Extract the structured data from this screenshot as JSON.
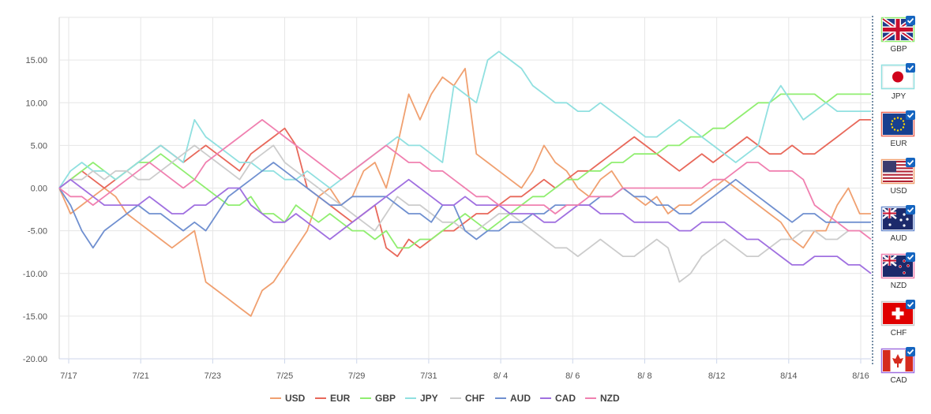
{
  "chart_data": {
    "type": "line",
    "title": "",
    "xlabel": "",
    "ylabel": "",
    "ylim": [
      -20,
      20
    ],
    "yticks": [
      15,
      10,
      5,
      0,
      -5,
      -10,
      -15,
      -20
    ],
    "ytick_labels": [
      "15.00",
      "10.00",
      "5.00",
      "0.00",
      "-5.00",
      "-10.00",
      "-15.00",
      "-20.00"
    ],
    "x_tick_labels": [
      "7/17",
      "7/21",
      "7/23",
      "7/25",
      "7/29",
      "7/31",
      "8/ 4",
      "8/ 6",
      "8/ 8",
      "8/12",
      "8/14",
      "8/16"
    ],
    "grid": true,
    "legend_position": "bottom",
    "series": [
      {
        "name": "USD",
        "color": "#f0a070",
        "values": [
          0,
          -3,
          -2,
          -1,
          0,
          -1,
          -3,
          -4,
          -5,
          -6,
          -7,
          -6,
          -5,
          -11,
          -12,
          -13,
          -14,
          -15,
          -12,
          -11,
          -9,
          -7,
          -5,
          -1,
          0,
          -2,
          -1,
          2,
          3,
          0,
          5,
          11,
          8,
          11,
          13,
          12,
          14,
          4,
          3,
          2,
          1,
          0,
          2,
          5,
          3,
          2,
          0,
          -1,
          1,
          2,
          0,
          -1,
          -2,
          -1,
          -3,
          -2,
          -2,
          -1,
          0,
          1,
          0,
          -1,
          -2,
          -3,
          -4,
          -6,
          -7,
          -5,
          -5,
          -2,
          0,
          -3,
          -3
        ]
      },
      {
        "name": "EUR",
        "color": "#e8685a",
        "values": [
          0,
          1,
          2,
          1,
          0,
          1,
          2,
          3,
          4,
          5,
          4,
          3,
          4,
          5,
          4,
          3,
          2,
          4,
          5,
          6,
          7,
          5,
          0,
          -1,
          -2,
          -3,
          -4,
          -3,
          -2,
          -7,
          -8,
          -6,
          -7,
          -6,
          -5,
          -5,
          -4,
          -3,
          -3,
          -2,
          -1,
          -1,
          0,
          1,
          0,
          1,
          2,
          2,
          3,
          4,
          5,
          6,
          5,
          4,
          3,
          2,
          3,
          4,
          3,
          4,
          5,
          6,
          5,
          4,
          4,
          5,
          4,
          4,
          5,
          6,
          7,
          8,
          8
        ]
      },
      {
        "name": "GBP",
        "color": "#90ee70",
        "values": [
          0,
          1,
          2,
          3,
          2,
          1,
          2,
          3,
          3,
          4,
          3,
          2,
          1,
          0,
          -1,
          -2,
          -2,
          -1,
          -3,
          -3,
          -4,
          -2,
          -3,
          -4,
          -3,
          -4,
          -5,
          -5,
          -6,
          -5,
          -7,
          -7,
          -6,
          -6,
          -5,
          -4,
          -3,
          -4,
          -5,
          -4,
          -3,
          -2,
          -1,
          -1,
          0,
          1,
          1,
          2,
          2,
          3,
          3,
          4,
          4,
          4,
          5,
          5,
          6,
          6,
          7,
          7,
          8,
          9,
          10,
          10,
          11,
          11,
          11,
          11,
          10,
          11,
          11,
          11,
          11
        ]
      },
      {
        "name": "JPY",
        "color": "#90e0e0",
        "values": [
          0,
          2,
          3,
          2,
          2,
          1,
          2,
          3,
          4,
          5,
          4,
          3,
          8,
          6,
          5,
          4,
          3,
          3,
          2,
          2,
          1,
          1,
          2,
          1,
          0,
          1,
          2,
          3,
          4,
          5,
          6,
          5,
          5,
          4,
          3,
          12,
          11,
          10,
          15,
          16,
          15,
          14,
          12,
          11,
          10,
          10,
          9,
          9,
          10,
          9,
          8,
          7,
          6,
          6,
          7,
          8,
          7,
          6,
          5,
          4,
          3,
          4,
          5,
          10,
          12,
          10,
          8,
          9,
          10,
          9,
          9,
          9,
          9
        ]
      },
      {
        "name": "CHF",
        "color": "#cccccc",
        "values": [
          0,
          1,
          1,
          2,
          1,
          2,
          2,
          1,
          1,
          2,
          3,
          4,
          5,
          4,
          3,
          2,
          1,
          3,
          4,
          5,
          3,
          2,
          1,
          0,
          -1,
          -2,
          -3,
          -4,
          -5,
          -3,
          -1,
          -2,
          -2,
          -3,
          -4,
          -4,
          -5,
          -5,
          -4,
          -3,
          -3,
          -4,
          -5,
          -6,
          -7,
          -7,
          -8,
          -7,
          -6,
          -7,
          -8,
          -8,
          -7,
          -6,
          -7,
          -11,
          -10,
          -8,
          -7,
          -6,
          -7,
          -8,
          -8,
          -7,
          -6,
          -6,
          -5,
          -5,
          -6,
          -6,
          -5,
          -5,
          -5
        ]
      },
      {
        "name": "AUD",
        "color": "#7090d0",
        "values": [
          0,
          -2,
          -5,
          -7,
          -5,
          -4,
          -3,
          -2,
          -3,
          -3,
          -4,
          -5,
          -4,
          -5,
          -3,
          -1,
          0,
          1,
          2,
          3,
          2,
          1,
          0,
          -1,
          -2,
          -2,
          -1,
          -1,
          -1,
          -1,
          -2,
          -3,
          -3,
          -4,
          -2,
          -2,
          -5,
          -6,
          -5,
          -5,
          -4,
          -4,
          -3,
          -3,
          -2,
          -2,
          -2,
          -2,
          -1,
          -1,
          0,
          -1,
          -1,
          -2,
          -2,
          -3,
          -3,
          -2,
          -1,
          0,
          1,
          0,
          -1,
          -2,
          -3,
          -4,
          -3,
          -3,
          -4,
          -4,
          -4,
          -4,
          -4
        ]
      },
      {
        "name": "CAD",
        "color": "#a070e0",
        "values": [
          0,
          1,
          0,
          -1,
          -2,
          -2,
          -2,
          -2,
          -1,
          -2,
          -3,
          -3,
          -2,
          -2,
          -1,
          0,
          0,
          -2,
          -3,
          -4,
          -4,
          -3,
          -4,
          -5,
          -6,
          -5,
          -4,
          -3,
          -2,
          -1,
          0,
          1,
          0,
          -1,
          -2,
          -2,
          -1,
          -2,
          -2,
          -2,
          -3,
          -3,
          -3,
          -4,
          -4,
          -3,
          -2,
          -2,
          -3,
          -3,
          -3,
          -4,
          -4,
          -4,
          -4,
          -5,
          -5,
          -4,
          -4,
          -4,
          -5,
          -6,
          -6,
          -7,
          -8,
          -9,
          -9,
          -8,
          -8,
          -8,
          -9,
          -9,
          -10
        ]
      },
      {
        "name": "NZD",
        "color": "#f080b0",
        "values": [
          0,
          -1,
          -1,
          -2,
          -1,
          0,
          1,
          2,
          3,
          2,
          1,
          0,
          1,
          3,
          4,
          5,
          6,
          7,
          8,
          7,
          6,
          5,
          4,
          3,
          2,
          1,
          2,
          3,
          4,
          5,
          4,
          3,
          3,
          2,
          2,
          1,
          0,
          -1,
          -1,
          -2,
          -2,
          -2,
          -2,
          -2,
          -3,
          -2,
          -2,
          -1,
          -1,
          -1,
          0,
          0,
          0,
          0,
          0,
          0,
          0,
          0,
          1,
          1,
          2,
          3,
          3,
          2,
          2,
          2,
          1,
          -2,
          -3,
          -4,
          -5,
          -5,
          -6
        ]
      }
    ]
  },
  "currency_panel": [
    {
      "code": "GBP",
      "checked": true
    },
    {
      "code": "JPY",
      "checked": true
    },
    {
      "code": "EUR",
      "checked": true
    },
    {
      "code": "USD",
      "checked": true
    },
    {
      "code": "AUD",
      "checked": true
    },
    {
      "code": "NZD",
      "checked": true
    },
    {
      "code": "CHF",
      "checked": true
    },
    {
      "code": "CAD",
      "checked": true
    }
  ]
}
